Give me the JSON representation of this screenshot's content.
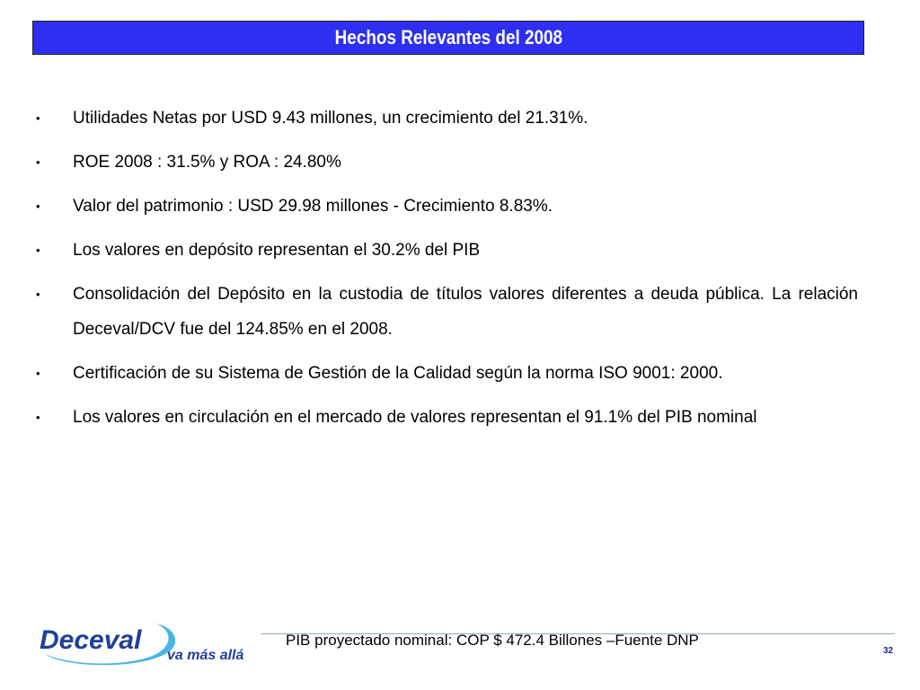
{
  "header": {
    "title": "Hechos Relevantes del 2008"
  },
  "bullets": [
    "Utilidades Netas por USD 9.43 millones, un crecimiento del 21.31%.",
    "ROE 2008 :  31.5% y ROA : 24.80%",
    "Valor del patrimonio :  USD 29.98 millones  - Crecimiento 8.83%.",
    "Los valores en depósito representan el 30.2% del PIB",
    "Consolidación del Depósito en la custodia de títulos valores diferentes a deuda pública. La relación Deceval/DCV fue del 124.85% en el 2008.",
    "Certificación de su Sistema de Gestión de la Calidad según la norma ISO 9001: 2000.",
    "Los valores en circulación en el mercado de valores representan el 91.1% del PIB nominal"
  ],
  "bullet_marker": "•",
  "footer": {
    "note": "PIB proyectado nominal: COP $ 472.4 Billones –Fuente DNP",
    "page_number": "32"
  },
  "logo": {
    "brand": "Deceval",
    "tagline": "va más allá"
  },
  "colors": {
    "title_bg": "#2e2ff0",
    "title_text": "#ffffff",
    "logo_blue": "#1f3f9a",
    "logo_swoosh": "#2aa8e0"
  }
}
